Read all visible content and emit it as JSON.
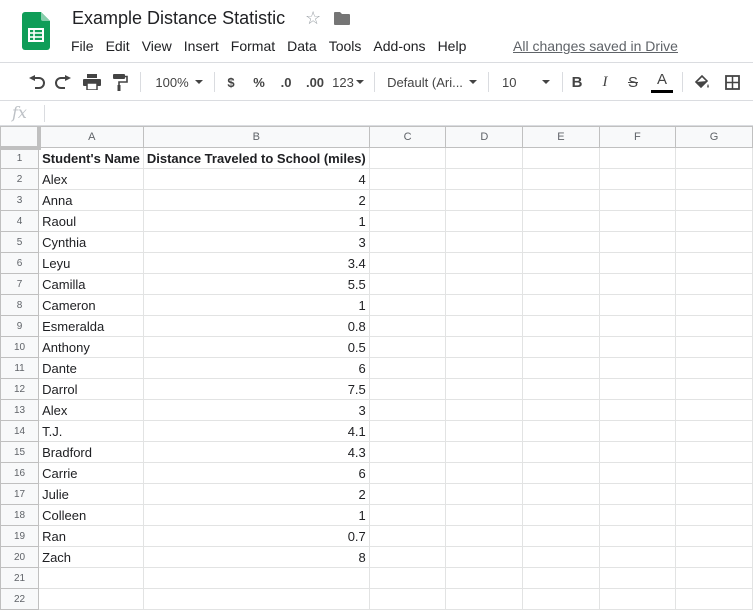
{
  "title": "Example Distance Statistic",
  "saved_status": "All changes saved in Drive",
  "menu": [
    "File",
    "Edit",
    "View",
    "Insert",
    "Format",
    "Data",
    "Tools",
    "Add-ons",
    "Help"
  ],
  "toolbar": {
    "zoom": "100%",
    "currency": "$",
    "percent": "%",
    "decrease_decimal": ".0",
    "increase_decimal": ".00",
    "more_formats": "123",
    "font": "Default (Ari...",
    "font_size": "10",
    "bold": "B",
    "italic": "I",
    "strikethrough": "S",
    "text_color": "A"
  },
  "formula_bar": {
    "fx_label": "fx",
    "value": ""
  },
  "columns": [
    "A",
    "B",
    "C",
    "D",
    "E",
    "F",
    "G"
  ],
  "rows": [
    {
      "num": "1",
      "a": "Student's Name",
      "b": "Distance Traveled to School (miles)"
    },
    {
      "num": "2",
      "a": "Alex",
      "b": "4"
    },
    {
      "num": "3",
      "a": "Anna",
      "b": "2"
    },
    {
      "num": "4",
      "a": "Raoul",
      "b": "1"
    },
    {
      "num": "5",
      "a": "Cynthia",
      "b": "3"
    },
    {
      "num": "6",
      "a": "Leyu",
      "b": "3.4"
    },
    {
      "num": "7",
      "a": "Camilla",
      "b": "5.5"
    },
    {
      "num": "8",
      "a": "Cameron",
      "b": "1"
    },
    {
      "num": "9",
      "a": "Esmeralda",
      "b": "0.8"
    },
    {
      "num": "10",
      "a": "Anthony",
      "b": "0.5"
    },
    {
      "num": "11",
      "a": "Dante",
      "b": "6"
    },
    {
      "num": "12",
      "a": "Darrol",
      "b": "7.5"
    },
    {
      "num": "13",
      "a": "Alex",
      "b": "3"
    },
    {
      "num": "14",
      "a": "T.J.",
      "b": "4.1"
    },
    {
      "num": "15",
      "a": "Bradford",
      "b": "4.3"
    },
    {
      "num": "16",
      "a": "Carrie",
      "b": "6"
    },
    {
      "num": "17",
      "a": "Julie",
      "b": "2"
    },
    {
      "num": "18",
      "a": "Colleen",
      "b": "1"
    },
    {
      "num": "19",
      "a": "Ran",
      "b": "0.7"
    },
    {
      "num": "20",
      "a": "Zach",
      "b": "8"
    },
    {
      "num": "21",
      "a": "",
      "b": ""
    },
    {
      "num": "22",
      "a": "",
      "b": ""
    }
  ],
  "colors": {
    "sheets_green": "#0f9d58",
    "header_bg": "#f8f9fa",
    "gridline": "#e2e3e3"
  }
}
